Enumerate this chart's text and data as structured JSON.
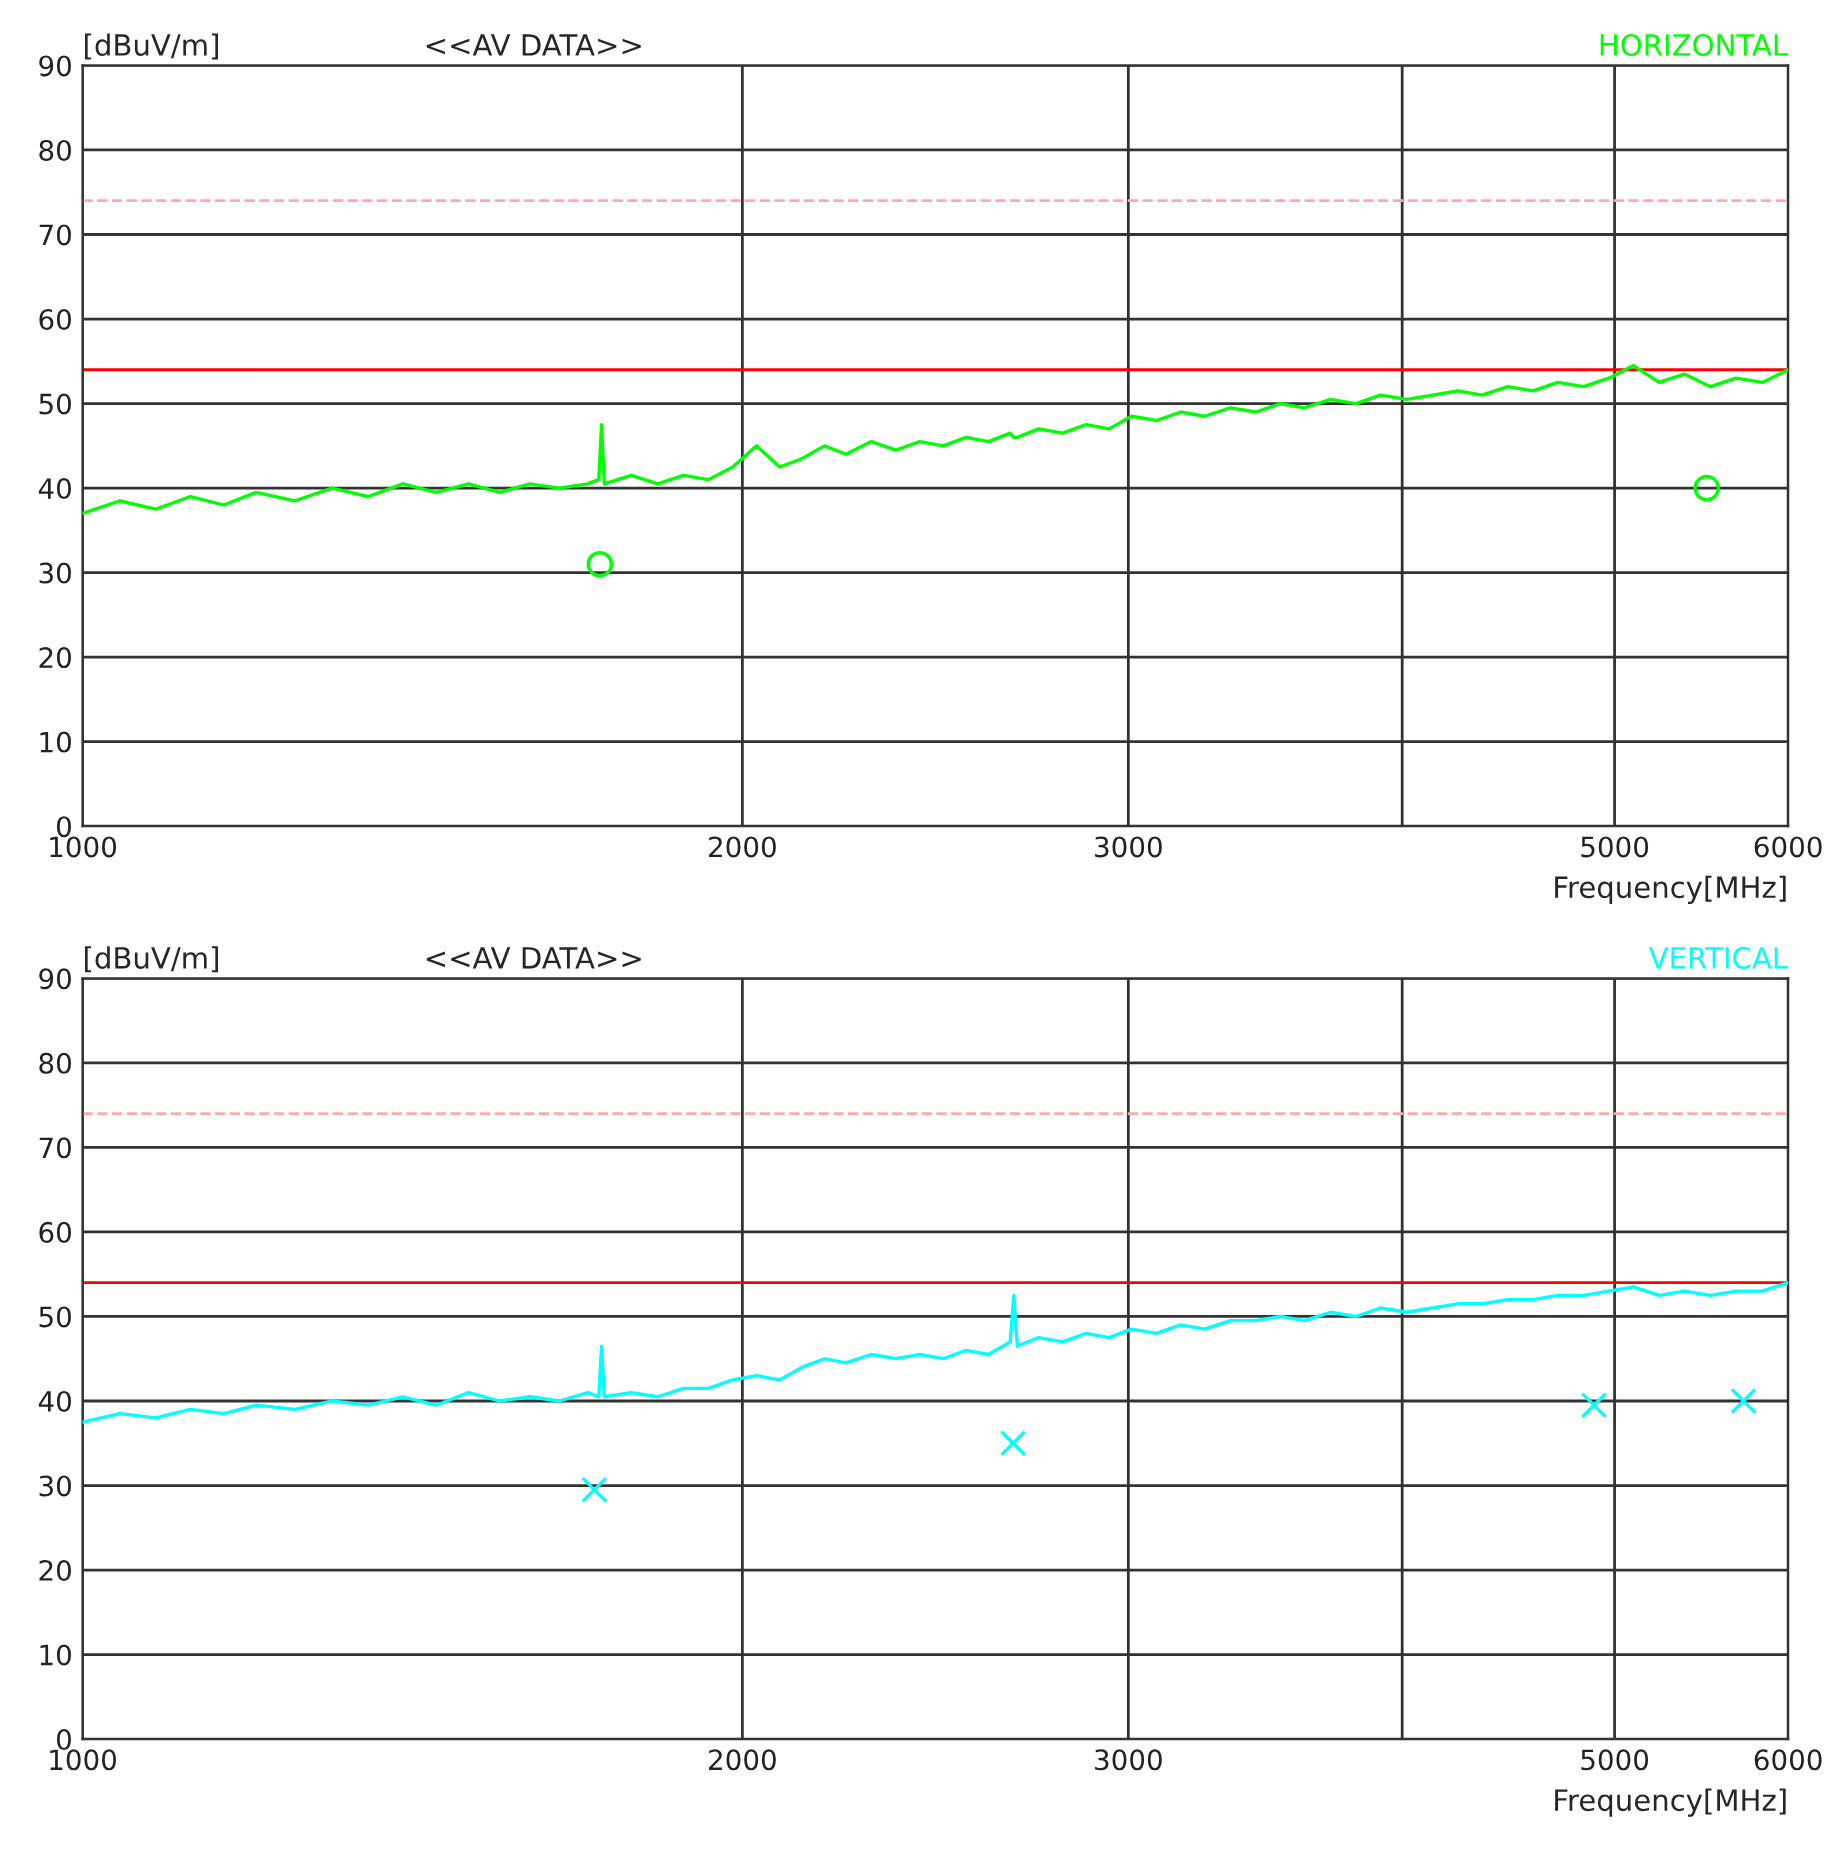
{
  "chart_data": [
    {
      "type": "line",
      "title": "<<AV DATA>>",
      "ylabel": "[dBuV/m]",
      "xlabel": "Frequency[MHz]",
      "log": "x",
      "xlim": [
        1000,
        6000
      ],
      "xticks": [
        1000,
        2000,
        3000,
        {
          "value": 4000,
          "label": null
        },
        5000,
        6000
      ],
      "ylim": [
        0,
        90
      ],
      "yticks": [
        0,
        10,
        20,
        30,
        40,
        50,
        60,
        70,
        80,
        90
      ],
      "grid": true,
      "legend": false,
      "ref_lines": [
        {
          "axis": "y",
          "value": 54,
          "label": null,
          "color": "#ff0000",
          "line_style": "solid"
        },
        {
          "axis": "y",
          "value": 74,
          "label": null,
          "color": "#ffaaaa",
          "line_style": "dashed"
        }
      ],
      "series": [
        {
          "name": "HORIZONTAL",
          "color": "#00ff00",
          "marker": "none",
          "x": [
            1000,
            1040,
            1080,
            1120,
            1160,
            1200,
            1250,
            1300,
            1350,
            1400,
            1450,
            1500,
            1550,
            1600,
            1650,
            1700,
            1720,
            1725,
            1730,
            1780,
            1830,
            1880,
            1930,
            1980,
            2030,
            2080,
            2130,
            2180,
            2230,
            2290,
            2350,
            2410,
            2470,
            2530,
            2590,
            2650,
            2660,
            2670,
            2730,
            2800,
            2870,
            2940,
            3010,
            3090,
            3170,
            3250,
            3340,
            3430,
            3520,
            3610,
            3710,
            3810,
            3910,
            4020,
            4130,
            4240,
            4350,
            4470,
            4590,
            4710,
            4840,
            4970,
            5100,
            5240,
            5380,
            5530,
            5680,
            5840,
            6000
          ],
          "values": [
            37,
            38.5,
            37.5,
            39,
            38,
            39.5,
            38.5,
            40,
            39,
            40.5,
            39.5,
            40.5,
            39.5,
            40.5,
            40,
            40.5,
            41,
            47.5,
            40.5,
            41.5,
            40.5,
            41.5,
            41,
            42.5,
            45,
            42.5,
            43.5,
            45,
            44,
            45.5,
            44.5,
            45.5,
            45,
            46,
            45.5,
            46.5,
            46,
            46,
            47,
            46.5,
            47.5,
            47,
            48.5,
            48,
            49,
            48.5,
            49.5,
            49,
            50,
            49.5,
            50.5,
            50,
            51,
            50.5,
            51,
            51.5,
            51,
            52,
            51.5,
            52.5,
            52,
            53,
            54.5,
            52.5,
            53.5,
            52,
            53,
            52.5,
            54
          ]
        },
        {
          "color": "#00ff00",
          "type": "scatter",
          "marker": "circle",
          "x": [
            1722,
            5508
          ],
          "values": [
            31,
            40
          ]
        }
      ]
    },
    {
      "type": "line",
      "title": "<<AV DATA>>",
      "ylabel": "[dBuV/m]",
      "xlabel": "Frequency[MHz]",
      "log": "x",
      "xlim": [
        1000,
        6000
      ],
      "xticks": [
        1000,
        2000,
        3000,
        {
          "value": 4000,
          "label": null
        },
        5000,
        6000
      ],
      "ylim": [
        0,
        90
      ],
      "yticks": [
        0,
        10,
        20,
        30,
        40,
        50,
        60,
        70,
        80,
        90
      ],
      "grid": true,
      "legend": false,
      "ref_lines": [
        {
          "axis": "y",
          "value": 54,
          "label": null,
          "color": "#ff0000",
          "line_style": "solid"
        },
        {
          "axis": "y",
          "value": 74,
          "label": null,
          "color": "#ffaaaa",
          "line_style": "dashed"
        }
      ],
      "series": [
        {
          "name": "VERTICAL",
          "color": "#00ffff",
          "marker": "none",
          "x": [
            1000,
            1040,
            1080,
            1120,
            1160,
            1200,
            1250,
            1300,
            1350,
            1400,
            1450,
            1500,
            1550,
            1600,
            1650,
            1700,
            1720,
            1725,
            1730,
            1780,
            1830,
            1880,
            1930,
            1980,
            2030,
            2080,
            2130,
            2180,
            2230,
            2290,
            2350,
            2410,
            2470,
            2530,
            2590,
            2650,
            2660,
            2670,
            2730,
            2800,
            2870,
            2940,
            3010,
            3090,
            3170,
            3250,
            3340,
            3430,
            3520,
            3610,
            3710,
            3810,
            3910,
            4020,
            4130,
            4240,
            4350,
            4470,
            4590,
            4710,
            4840,
            4970,
            5100,
            5240,
            5380,
            5530,
            5680,
            5840,
            6000
          ],
          "values": [
            37.5,
            38.5,
            38,
            39,
            38.5,
            39.5,
            39,
            40,
            39.5,
            40.5,
            39.5,
            41,
            40,
            40.5,
            40,
            41,
            40.5,
            46.5,
            40.5,
            41,
            40.5,
            41.5,
            41.5,
            42.5,
            43,
            42.5,
            44,
            45,
            44.5,
            45.5,
            45,
            45.5,
            45,
            46,
            45.5,
            47,
            52.5,
            46.5,
            47.5,
            47,
            48,
            47.5,
            48.5,
            48,
            49,
            48.5,
            49.5,
            49.5,
            50,
            49.5,
            50.5,
            50,
            51,
            50.5,
            51,
            51.5,
            51.5,
            52,
            52,
            52.5,
            52.5,
            53,
            53.5,
            52.5,
            53,
            52.5,
            53,
            53,
            54
          ]
        },
        {
          "color": "#00ffff",
          "type": "scatter",
          "marker": "cross",
          "x": [
            1712,
            2658,
            4893,
            5725
          ],
          "values": [
            29.5,
            35,
            39.5,
            40
          ]
        }
      ]
    }
  ]
}
